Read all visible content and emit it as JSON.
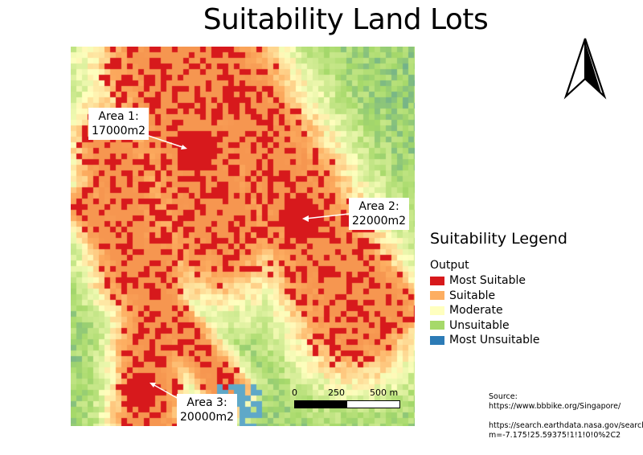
{
  "title": "Suitability Land Lots",
  "callouts": [
    {
      "line1": "Area 1:",
      "line2": "17000m2"
    },
    {
      "line1": "Area 2:",
      "line2": "22000m2"
    },
    {
      "line1": "Area 3:",
      "line2": "20000m2"
    }
  ],
  "legend": {
    "title": "Suitability Legend",
    "subtitle": "Output",
    "items": [
      {
        "label": "Most Suitable",
        "color": "#d7191c"
      },
      {
        "label": "Suitable",
        "color": "#fdae61"
      },
      {
        "label": "Moderate",
        "color": "#ffffbf"
      },
      {
        "label": "Unsuitable",
        "color": "#a6d96a"
      },
      {
        "label": "Most Unsuitable",
        "color": "#2c7bb6"
      }
    ]
  },
  "scalebar": {
    "labels": [
      "0",
      "250",
      "500 m"
    ]
  },
  "north_arrow": "north-arrow-icon",
  "source": {
    "line1": "Source:",
    "line2": "https://www.bbbike.org/Singapore/",
    "line3": "https://search.earthdata.nasa.gov/search?",
    "line4": "m=-7.175!25.59375!1!1!0!0%2C2"
  }
}
